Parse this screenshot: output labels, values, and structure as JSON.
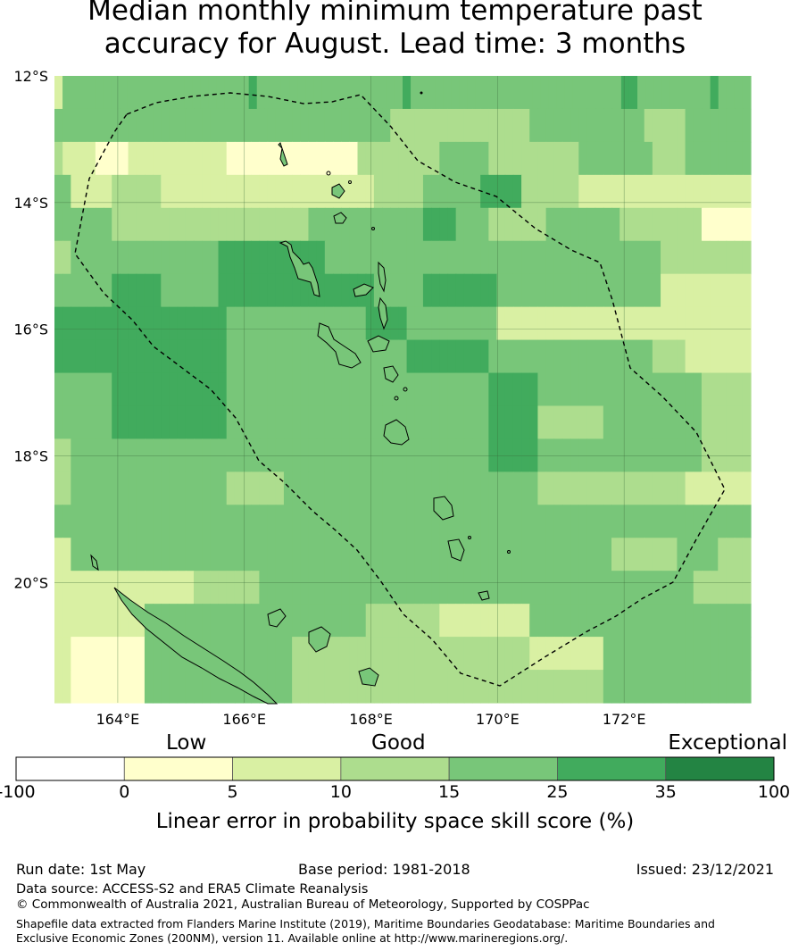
{
  "title_line1": "Median monthly minimum temperature past",
  "title_line2": "accuracy for August. Lead time: 3 months",
  "map": {
    "lon_min": 163.0,
    "lon_max": 174.0,
    "lat_min": -21.9,
    "lat_max": -12.0,
    "lon_ticks": [
      {
        "value": 164,
        "label": "164°E"
      },
      {
        "value": 166,
        "label": "166°E"
      },
      {
        "value": 168,
        "label": "168°E"
      },
      {
        "value": 170,
        "label": "170°E"
      },
      {
        "value": 172,
        "label": "172°E"
      }
    ],
    "lat_ticks": [
      {
        "value": -12,
        "label": "12°S"
      },
      {
        "value": -14,
        "label": "14°S"
      },
      {
        "value": -16,
        "label": "16°S"
      },
      {
        "value": -18,
        "label": "18°S"
      },
      {
        "value": -20,
        "label": "20°S"
      }
    ],
    "cell_colors": {
      "1": "#ffffcc",
      "2": "#d9f0a3",
      "3": "#addd8e",
      "4": "#78c679",
      "5": "#41ab5d",
      "6": "#238443"
    },
    "grid_note": "rows top→bottom, cols left→right; 1=0-5,2=5-10,3=10-15,4=15-25,5=25-35",
    "grid": [
      "24444444444444444444444454444444444444444445444444444444444444444444445544444444454444",
      "4444444444444444444444444444444444444444433333333333333333444444444444443333344444444",
      "3222211112222222222221111111111111111333333333344444433333333333444444444333344444444",
      "4422222333333222222222222222222222222223333334444444555553333333222222222222222222222",
      "4444444333333333333333333333333444444444444445555444433333334444444443333333333111111",
      "3344444444444444444455555555555554444444444444444444444444444444444444444433333333333",
      "4444444555555444444455555555555555555554444445555555554444444444444444444422222222222",
      "5555555555555555555554444444444444444455555444444444442222222222222222222222222222222",
      "5555555555555555555554444444444444444444444555555555544444444444444444444333322222222",
      "4444444555555555555554444444444444444444444444444444455555544444444444444444444333333",
      "4444444555555555555554444444444444444444444444444444455555533333333444444444444333333",
      "3344444444444444444444444444444444444444444444444444455555544444444444444444444333333",
      "3344444444444444444443333333444444444444444444444444444444433333333333333333322222222",
      "4444444444444444444444444444444444444444444444444444444444444444444444444444444444444",
      "2244444444444444444444444444444444444444444444444444444444444444444433333333444443333",
      "2222222222222222233333333444444444444444444444444444444444444444444444444444443333333",
      "2222222222244444444444444444444444444433333333322222222222444444444444444444444444444",
      "2211111111144444444444444444433333333333333333333333333333222222222444444444444444444",
      "2211111111144444444444444444433333333333333333333333333333333333333444444444444444444"
    ],
    "cell_width_note": "each grid character = one 1/8-degree column block",
    "boundary_dashed": "EEZ boundary",
    "ocean_color": "#ffffff"
  },
  "colorbar": {
    "categories": [
      {
        "label": "Low",
        "pos": 0.2
      },
      {
        "label": "Good",
        "pos": 0.5
      },
      {
        "label": "Exceptional",
        "pos": 0.83
      }
    ],
    "segments": [
      {
        "from": "-100",
        "to": "0",
        "color": "#ffffff"
      },
      {
        "from": "0",
        "to": "5",
        "color": "#ffffcc"
      },
      {
        "from": "5",
        "to": "10",
        "color": "#d9f0a3"
      },
      {
        "from": "10",
        "to": "15",
        "color": "#addd8e"
      },
      {
        "from": "15",
        "to": "25",
        "color": "#78c679"
      },
      {
        "from": "25",
        "to": "35",
        "color": "#41ab5d"
      },
      {
        "from": "35",
        "to": "100",
        "color": "#238443"
      }
    ],
    "ticks": [
      "-100",
      "0",
      "5",
      "10",
      "15",
      "25",
      "35",
      "100"
    ],
    "label": "Linear error in probability space skill score (%)"
  },
  "footer": {
    "run_date": "Run date: 1st May",
    "base_period": "Base period: 1981-2018",
    "issued": "Issued: 23/12/2021",
    "data_source": "Data source: ACCESS-S2 and ERA5 Climate Reanalysis",
    "copyright": "© Commonwealth of Australia 2021, Australian Bureau of Meteorology, Supported by COSPPac",
    "shapefile": "Shapefile data extracted from Flanders Marine Institute (2019), Maritime Boundaries Geodatabase: Maritime Boundaries and Exclusive Economic Zones (200NM), version 11. Available online at http://www.marineregions.org/."
  }
}
